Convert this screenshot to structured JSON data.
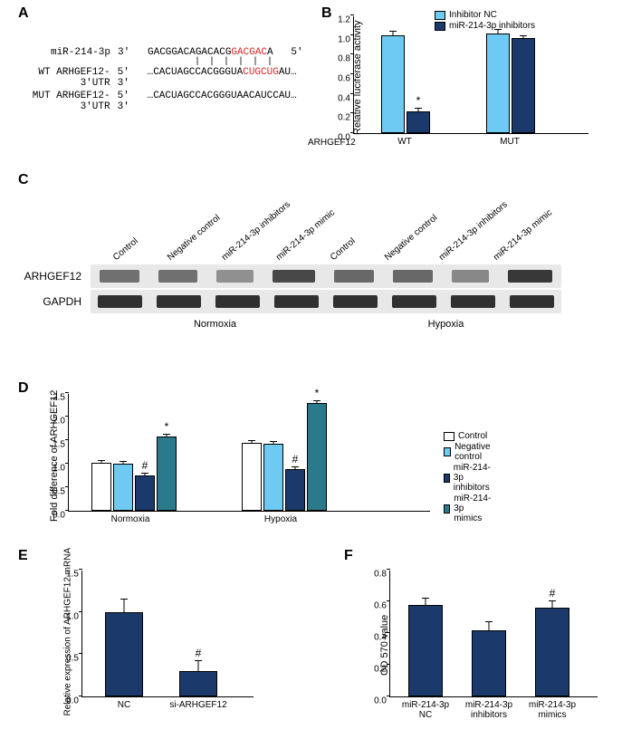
{
  "colors": {
    "light": "#6ecaf2",
    "dark": "#1b3a6b",
    "teal": "#2a7a8c",
    "darker": "#0f2a52",
    "white": "#ffffff",
    "highlight": "#d62728",
    "band_dark": "#3a3a3a",
    "band_mid": "#6a6a6a",
    "band_light": "#9a9a9a",
    "strip_bg": "#e8e8e8"
  },
  "panelLabels": {
    "A": "A",
    "B": "B",
    "C": "C",
    "D": "D",
    "E": "E",
    "F": "F"
  },
  "panelA": {
    "rows": [
      {
        "label": "miR-214-3p",
        "end5": "3'",
        "seq_plain": "GACGGACAGACACG",
        "seq_red": "GACGAC",
        "seq_tail": "A",
        "end3": "5'"
      },
      {
        "label": "WT ARHGEF12-3'UTR",
        "end5": "5'",
        "seq_plain": "…CACUAGCCACGGGUA",
        "seq_red": "CUGCUG",
        "seq_tail": "AU…3'",
        "end3": ""
      },
      {
        "label": "MUT ARHGEF12-3'UTR",
        "end5": "5'",
        "seq_plain": "…CACUAGCCACGGGUAACAUCCAU…3'",
        "seq_red": "",
        "seq_tail": "",
        "end3": ""
      }
    ],
    "match": "| | | | | |"
  },
  "panelB": {
    "ylabel": "Relative luciferase activity",
    "xlabel_root": "ARHGEF12",
    "ylim": [
      0,
      1.2
    ],
    "yticks": [
      0.0,
      0.2,
      0.4,
      0.6,
      0.8,
      1.0,
      1.2
    ],
    "legend": [
      {
        "label": "Inhibitor NC",
        "color": "#6ecaf2"
      },
      {
        "label": "miR-214-3p inhibitors",
        "color": "#1b3a6b"
      }
    ],
    "groups": [
      {
        "name": "WT",
        "bars": [
          {
            "v": 1.0,
            "e": 0.03,
            "c": "#6ecaf2"
          },
          {
            "v": 0.22,
            "e": 0.03,
            "c": "#1b3a6b",
            "sig": "*"
          }
        ]
      },
      {
        "name": "MUT",
        "bars": [
          {
            "v": 1.02,
            "e": 0.03,
            "c": "#6ecaf2"
          },
          {
            "v": 0.97,
            "e": 0.02,
            "c": "#1b3a6b"
          }
        ]
      }
    ]
  },
  "panelC": {
    "lanes": [
      "Control",
      "Negative control",
      "miR-214-3p inhibitors",
      "miR-214-3p mimic",
      "Control",
      "Negative control",
      "miR-214-3p inhibitors",
      "miR-214-3p mimic"
    ],
    "rows": [
      {
        "name": "ARHGEF12",
        "intensities": [
          0.55,
          0.55,
          0.35,
          0.8,
          0.6,
          0.6,
          0.4,
          0.9
        ]
      },
      {
        "name": "GAPDH",
        "intensities": [
          0.95,
          0.95,
          0.95,
          0.95,
          0.95,
          0.95,
          0.95,
          0.95
        ]
      }
    ],
    "conditions": [
      "Normoxia",
      "Hypoxia"
    ]
  },
  "panelD": {
    "ylabel": "Fold difference of ARHGEF12",
    "ylim": [
      0,
      2.5
    ],
    "yticks": [
      0.0,
      0.5,
      1.0,
      1.5,
      2.0,
      2.5
    ],
    "legend": [
      {
        "label": "Control",
        "color": "#ffffff"
      },
      {
        "label": "Negative control",
        "color": "#6ecaf2"
      },
      {
        "label": "miR-214-3p inhibitors",
        "color": "#1b3a6b"
      },
      {
        "label": "miR-214-3p mimics",
        "color": "#2a7a8c"
      }
    ],
    "groups": [
      {
        "name": "Normoxia",
        "bars": [
          {
            "v": 1.02,
            "e": 0.03,
            "c": "#ffffff"
          },
          {
            "v": 1.0,
            "e": 0.03,
            "c": "#6ecaf2"
          },
          {
            "v": 0.75,
            "e": 0.04,
            "c": "#1b3a6b",
            "sig": "#"
          },
          {
            "v": 1.58,
            "e": 0.04,
            "c": "#2a7a8c",
            "sig": "*"
          }
        ]
      },
      {
        "name": "Hypoxia",
        "bars": [
          {
            "v": 1.45,
            "e": 0.04,
            "c": "#ffffff"
          },
          {
            "v": 1.42,
            "e": 0.04,
            "c": "#6ecaf2"
          },
          {
            "v": 0.88,
            "e": 0.04,
            "c": "#1b3a6b",
            "sig": "#"
          },
          {
            "v": 2.28,
            "e": 0.05,
            "c": "#2a7a8c",
            "sig": "*"
          }
        ]
      }
    ]
  },
  "panelE": {
    "ylabel": "Relative expression of ARHGEF12 mRNA",
    "ylim": [
      0,
      1.5
    ],
    "yticks": [
      0.0,
      0.5,
      1.0,
      1.5
    ],
    "bars": [
      {
        "name": "NC",
        "v": 1.0,
        "e": 0.15,
        "c": "#1b3a6b"
      },
      {
        "name": "si-ARHGEF12",
        "v": 0.3,
        "e": 0.12,
        "c": "#1b3a6b",
        "sig": "#"
      }
    ]
  },
  "panelF": {
    "ylabel": "OD 570 value",
    "ylim": [
      0,
      0.8
    ],
    "yticks": [
      0.0,
      0.2,
      0.4,
      0.6,
      0.8
    ],
    "bars": [
      {
        "name": "miR-214-3p\nNC",
        "v": 0.58,
        "e": 0.04,
        "c": "#1b3a6b"
      },
      {
        "name": "miR-214-3p\ninhibitors",
        "v": 0.42,
        "e": 0.05,
        "c": "#1b3a6b"
      },
      {
        "name": "miR-214-3p\nmimics",
        "v": 0.56,
        "e": 0.04,
        "c": "#1b3a6b",
        "sig": "#"
      }
    ]
  }
}
